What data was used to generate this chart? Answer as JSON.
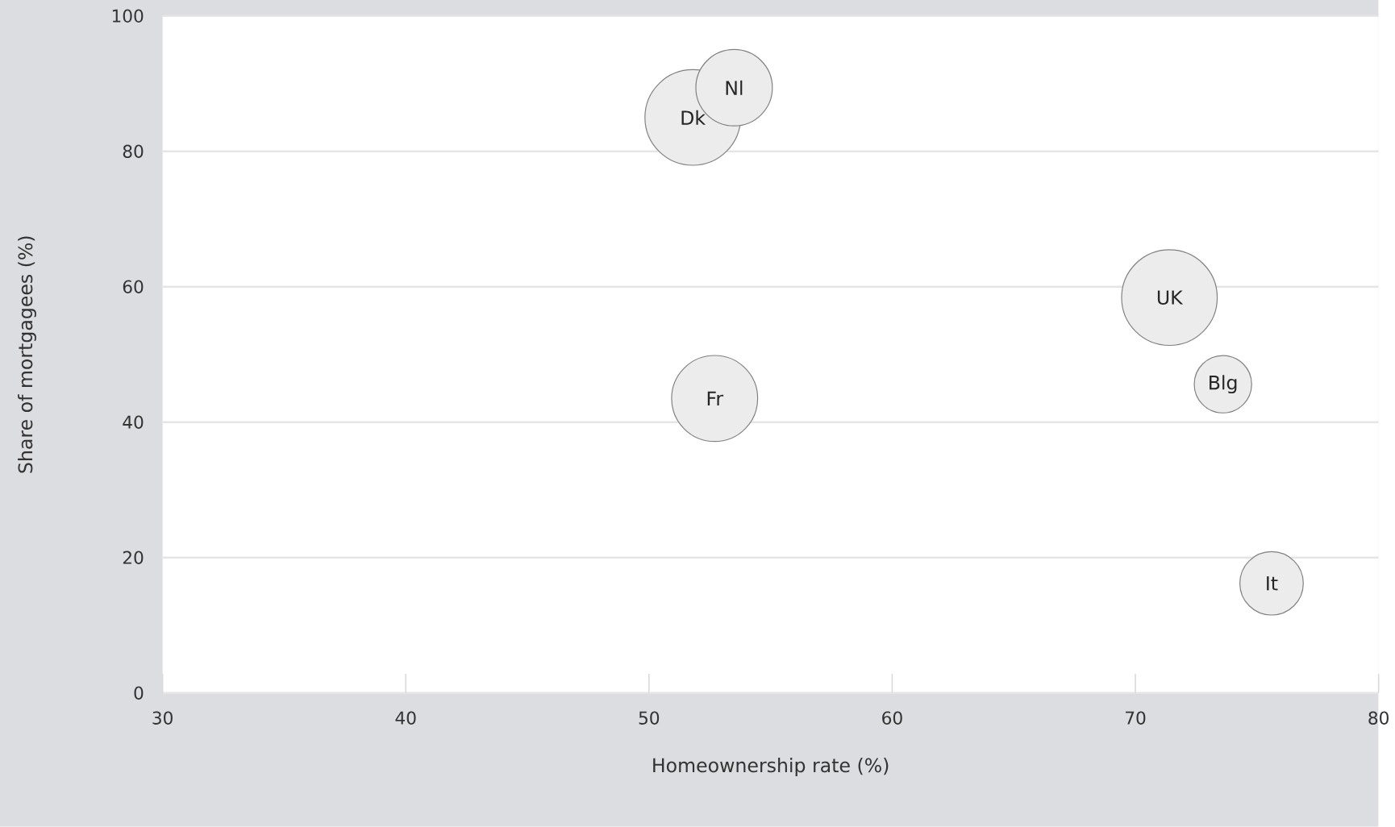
{
  "chart_data": {
    "type": "bubble",
    "xlabel": "Homeownership rate (%)",
    "ylabel": "Share of mortgagees (%)",
    "xlim": [
      30,
      80
    ],
    "xticks": [
      30,
      40,
      50,
      60,
      70,
      80
    ],
    "ylim": [
      0,
      100
    ],
    "yticks": [
      0,
      20,
      40,
      60,
      80,
      100
    ],
    "grid": "y",
    "color": "#ececec",
    "x": [
      51.8,
      53.5,
      52.7,
      71.4,
      73.6,
      75.6
    ],
    "values": [
      85,
      89.4,
      43.5,
      58.4,
      45.6,
      16.2
    ],
    "sizes": [
      1,
      0.64,
      0.81,
      1,
      0.36,
      0.44
    ],
    "annotations": [
      {
        "text": "Dk",
        "x": 51.8,
        "y": 85
      },
      {
        "text": "Nl",
        "x": 53.5,
        "y": 89.4
      },
      {
        "text": "Fr",
        "x": 52.7,
        "y": 43.5
      },
      {
        "text": "UK",
        "x": 71.4,
        "y": 58.4
      },
      {
        "text": "Blg",
        "x": 73.6,
        "y": 45.6
      },
      {
        "text": "It",
        "x": 75.6,
        "y": 16.2
      }
    ]
  }
}
